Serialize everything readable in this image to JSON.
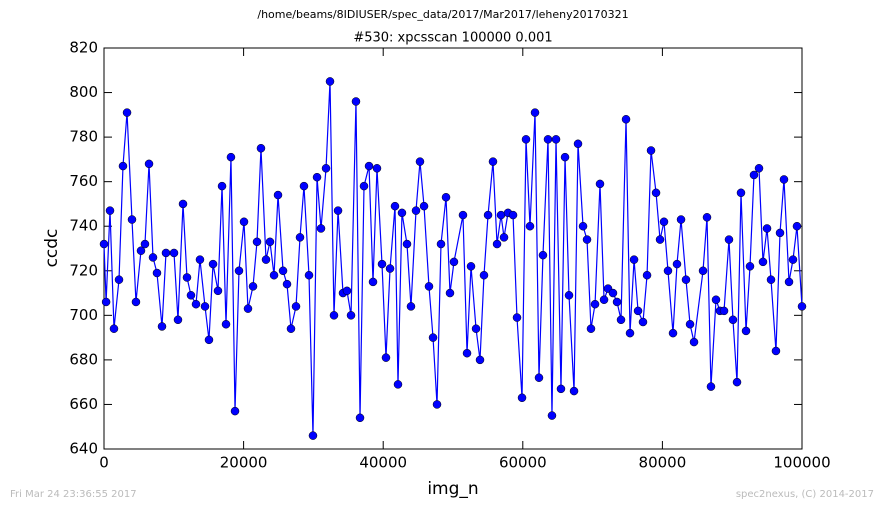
{
  "chart_data": {
    "type": "line",
    "suptitle": "/home/beams/8IDIUSER/spec_data/2017/Mar2017/leheny20170321",
    "title": "#530: xpcsscan 100000 0.001",
    "xlabel": "img_n",
    "ylabel": "ccdc",
    "footer_left": "Fri Mar 24 23:36:55 2017",
    "footer_right": "spec2nexus, (C) 2014-2017",
    "xlim": [
      0,
      100000
    ],
    "ylim": [
      640,
      820
    ],
    "xticks": [
      0,
      20000,
      40000,
      60000,
      80000,
      100000
    ],
    "yticks": [
      640,
      660,
      680,
      700,
      720,
      740,
      760,
      780,
      800,
      820
    ],
    "grid": false,
    "x": [
      0,
      300,
      860,
      1430,
      2150,
      2720,
      3300,
      4010,
      4580,
      5300,
      5870,
      6450,
      7020,
      7590,
      8310,
      8880,
      10030,
      10600,
      11320,
      11890,
      12460,
      13180,
      13750,
      14470,
      15040,
      15620,
      16330,
      16910,
      17480,
      18190,
      18770,
      19340,
      20060,
      20630,
      21350,
      21920,
      22490,
      23210,
      23780,
      24360,
      24930,
      25650,
      26220,
      26790,
      27510,
      28080,
      28650,
      29370,
      29940,
      30520,
      31090,
      31810,
      32380,
      32950,
      33530,
      34240,
      34810,
      35390,
      36100,
      36680,
      37250,
      37970,
      38540,
      39110,
      39830,
      40400,
      40980,
      41690,
      42120,
      42690,
      43410,
      43980,
      44700,
      45270,
      45850,
      46560,
      47140,
      47710,
      48280,
      49000,
      49570,
      50140,
      51430,
      52010,
      52580,
      53300,
      53870,
      54440,
      55020,
      55730,
      56310,
      56880,
      57310,
      57880,
      58600,
      59170,
      59890,
      60460,
      61030,
      61750,
      62320,
      62890,
      63610,
      64180,
      64760,
      65470,
      66050,
      66620,
      67340,
      67910,
      68630,
      69200,
      69770,
      70350,
      71060,
      71640,
      72210,
      72920,
      73500,
      74070,
      74790,
      75360,
      75940,
      76510,
      77220,
      77800,
      78370,
      79090,
      79660,
      80230,
      80800,
      81520,
      82090,
      82670,
      83380,
      83960,
      84530,
      85820,
      86390,
      86960,
      87680,
      88250,
      88830,
      89540,
      90110,
      90690,
      91260,
      91980,
      92550,
      93120,
      93840,
      94410,
      94990,
      95560,
      96270,
      96850,
      97420,
      98140,
      98710,
      99280,
      100000
    ],
    "series": [
      {
        "name": "ccdc",
        "color": "#0000ff",
        "values": [
          732,
          706,
          747,
          694,
          716,
          767,
          791,
          743,
          706,
          729,
          732,
          768,
          726,
          719,
          695,
          728,
          728,
          698,
          750,
          717,
          709,
          705,
          725,
          704,
          689,
          723,
          711,
          758,
          696,
          771,
          657,
          720,
          742,
          703,
          713,
          733,
          775,
          725,
          733,
          718,
          754,
          720,
          714,
          694,
          704,
          735,
          758,
          718,
          646,
          762,
          739,
          766,
          805,
          700,
          747,
          710,
          711,
          700,
          796,
          654,
          758,
          767,
          715,
          766,
          723,
          681,
          721,
          749,
          669,
          746,
          732,
          704,
          747,
          769,
          749,
          713,
          690,
          660,
          732,
          753,
          710,
          724,
          745,
          683,
          722,
          694,
          680,
          718,
          745,
          769,
          732,
          745,
          735,
          746,
          745,
          699,
          663,
          779,
          740,
          791,
          672,
          727,
          779,
          655,
          779,
          667,
          771,
          709,
          666,
          777,
          740,
          734,
          694,
          705,
          759,
          707,
          712,
          710,
          706,
          698,
          788,
          692,
          725,
          702,
          697,
          718,
          774,
          755,
          734,
          742,
          720,
          692,
          723,
          743,
          716,
          696,
          688,
          720,
          744,
          668,
          707,
          702,
          702,
          734,
          698,
          670,
          755,
          693,
          722,
          763,
          766,
          724,
          739,
          716,
          684,
          737,
          761,
          715,
          725,
          740,
          704
        ]
      }
    ]
  }
}
